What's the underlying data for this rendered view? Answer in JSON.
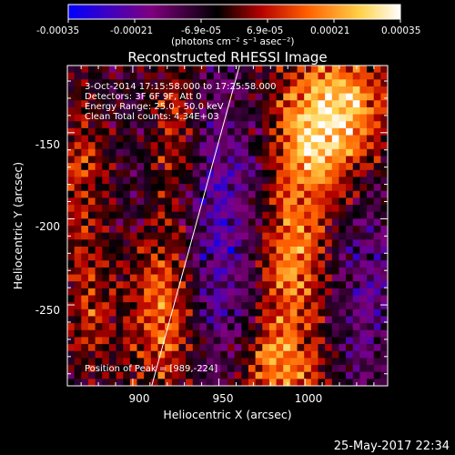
{
  "colorbar": {
    "ticks": [
      "-0.00035",
      "-0.00021",
      "-6.9e-05",
      "6.9e-05",
      "0.00021",
      "0.00035"
    ],
    "units_label": "(photons cm⁻² s⁻¹ asec⁻²)",
    "colors": [
      "#0000ff",
      "#7f007f",
      "#000000",
      "#b40000",
      "#ff6000",
      "#ffd24a",
      "#ffffff"
    ]
  },
  "title": "Reconstructed RHESSI Image",
  "annotations": {
    "time": "3-Oct-2014 17:15:58.000 to 17:25:58.000",
    "detectors": "Detectors: 3F 6F 9F, Att 0",
    "energy": "Energy Range: 25.0 - 50.0 keV",
    "clean": "Clean     Total counts: 4.34E+03",
    "peak": "Position of Peak = [989,-224]"
  },
  "footer_timestamp": "25-May-2017 22:34",
  "chart_data": {
    "type": "heatmap",
    "title": "Reconstructed RHESSI Image",
    "xlabel": "Heliocentric X (arcsec)",
    "ylabel": "Heliocentric Y (arcsec)",
    "xlim": [
      862,
      1048
    ],
    "ylim": [
      -297,
      -111
    ],
    "x_ticks": [
      900,
      950,
      1000
    ],
    "y_ticks": [
      -150,
      -200,
      -250
    ],
    "colorbar_range": [
      -0.00035,
      0.00035
    ],
    "peak": [
      989,
      -224
    ],
    "limb_line": [
      [
        911,
        -297
      ],
      [
        962,
        -111
      ]
    ]
  }
}
